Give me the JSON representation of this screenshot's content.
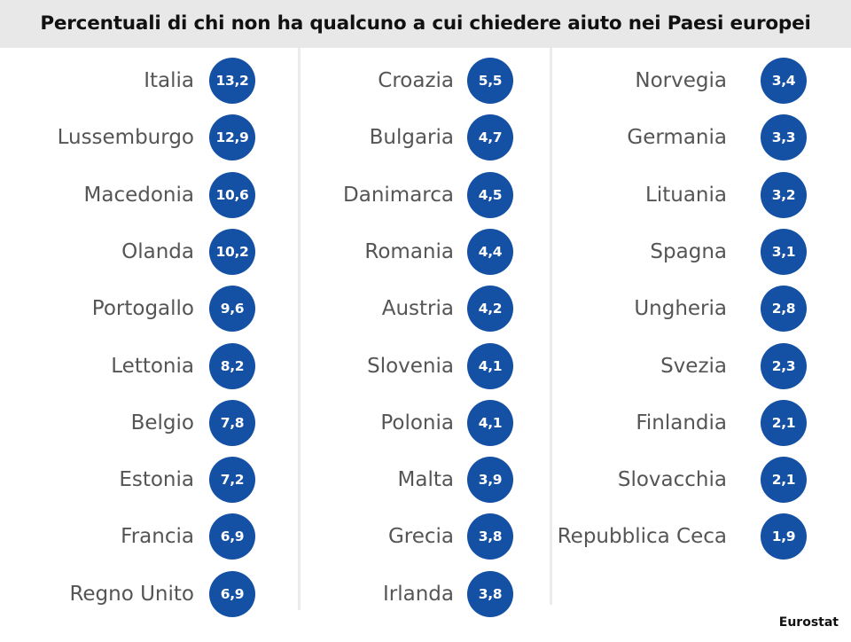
{
  "title": "Percentuali di chi non ha qualcuno a cui chiedere aiuto nei Paesi europei",
  "source": "Eurostat",
  "colors": {
    "badge": "#1450a3",
    "header_bg": "#e8e8e8",
    "label": "#555555"
  },
  "chart_data": {
    "type": "table",
    "title": "Percentuali di chi non ha qualcuno a cui chiedere aiuto nei Paesi europei",
    "columns": [
      [
        {
          "country": "Italia",
          "value": "13,2"
        },
        {
          "country": "Lussemburgo",
          "value": "12,9"
        },
        {
          "country": "Macedonia",
          "value": "10,6"
        },
        {
          "country": "Olanda",
          "value": "10,2"
        },
        {
          "country": "Portogallo",
          "value": "9,6"
        },
        {
          "country": "Lettonia",
          "value": "8,2"
        },
        {
          "country": "Belgio",
          "value": "7,8"
        },
        {
          "country": "Estonia",
          "value": "7,2"
        },
        {
          "country": "Francia",
          "value": "6,9"
        },
        {
          "country": "Regno Unito",
          "value": "6,9"
        }
      ],
      [
        {
          "country": "Croazia",
          "value": "5,5"
        },
        {
          "country": "Bulgaria",
          "value": "4,7"
        },
        {
          "country": "Danimarca",
          "value": "4,5"
        },
        {
          "country": "Romania",
          "value": "4,4"
        },
        {
          "country": "Austria",
          "value": "4,2"
        },
        {
          "country": "Slovenia",
          "value": "4,1"
        },
        {
          "country": "Polonia",
          "value": "4,1"
        },
        {
          "country": "Malta",
          "value": "3,9"
        },
        {
          "country": "Grecia",
          "value": "3,8"
        },
        {
          "country": "Irlanda",
          "value": "3,8"
        }
      ],
      [
        {
          "country": "Norvegia",
          "value": "3,4"
        },
        {
          "country": "Germania",
          "value": "3,3"
        },
        {
          "country": "Lituania",
          "value": "3,2"
        },
        {
          "country": "Spagna",
          "value": "3,1"
        },
        {
          "country": "Ungheria",
          "value": "2,8"
        },
        {
          "country": "Svezia",
          "value": "2,3"
        },
        {
          "country": "Finlandia",
          "value": "2,1"
        },
        {
          "country": "Slovacchia",
          "value": "2,1"
        },
        {
          "country": "Repubblica Ceca",
          "value": "1,9"
        }
      ]
    ]
  }
}
